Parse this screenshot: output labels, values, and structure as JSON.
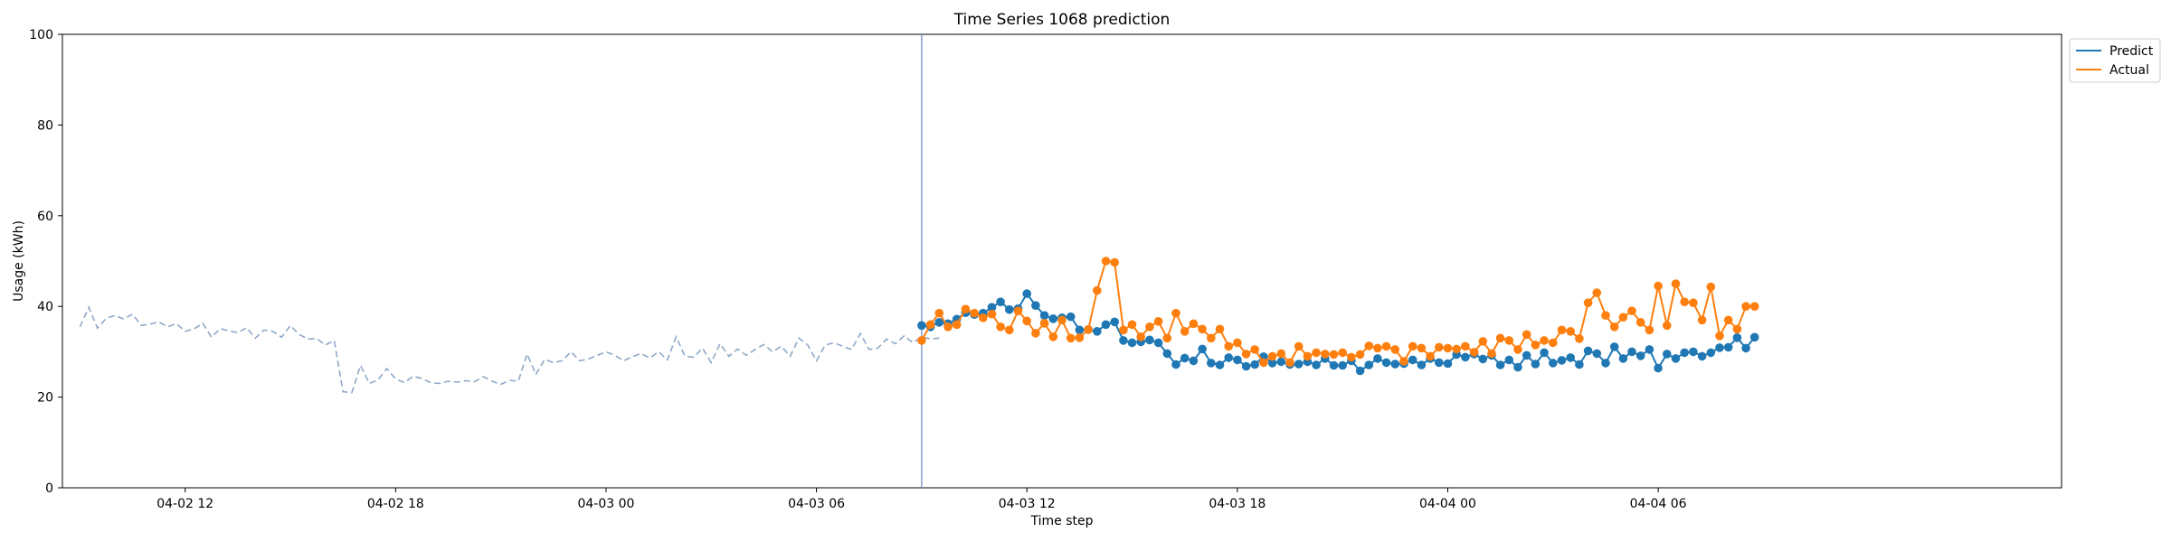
{
  "chart_data": {
    "type": "line",
    "title": "Time Series 1068 prediction",
    "xlabel": "Time step",
    "ylabel": "Usage (kWh)",
    "ylim": [
      0,
      100
    ],
    "yticks": [
      0,
      20,
      40,
      60,
      80,
      100
    ],
    "x_axis": {
      "start": "2024-04-02T08:30",
      "end": "2024-04-04T17:30",
      "ticks": [
        {
          "t": "2024-04-02T12:00",
          "label": "04-02 12"
        },
        {
          "t": "2024-04-02T18:00",
          "label": "04-02 18"
        },
        {
          "t": "2024-04-03T00:00",
          "label": "04-03 00"
        },
        {
          "t": "2024-04-03T06:00",
          "label": "04-03 06"
        },
        {
          "t": "2024-04-03T12:00",
          "label": "04-03 12"
        },
        {
          "t": "2024-04-03T18:00",
          "label": "04-03 18"
        },
        {
          "t": "2024-04-04T00:00",
          "label": "04-04 00"
        },
        {
          "t": "2024-04-04T06:00",
          "label": "04-04 06"
        }
      ]
    },
    "step_minutes": 15,
    "split_time": "2024-04-03T09:00",
    "legend": {
      "placement": "top-right",
      "entries": [
        "Predict",
        "Actual"
      ]
    },
    "colors": {
      "predict": "#1f77b4",
      "actual": "#ff7f0e",
      "history": "#8fa8c8",
      "split_line": "#6f8fc8"
    },
    "series": [
      {
        "name": "History",
        "style": "dashed",
        "start": "2024-04-02T09:00",
        "values": [
          35.5,
          39.8,
          35.2,
          37.4,
          38.0,
          37.2,
          38.3,
          35.8,
          36.1,
          36.6,
          35.5,
          36.2,
          34.5,
          35.0,
          36.3,
          33.2,
          35.1,
          34.6,
          34.2,
          35.3,
          33.0,
          34.8,
          34.5,
          33.2,
          35.8,
          33.8,
          32.8,
          32.9,
          31.5,
          32.5,
          21.2,
          21.0,
          27.0,
          23.0,
          23.8,
          26.3,
          24.0,
          23.2,
          24.6,
          24.1,
          23.2,
          23.0,
          23.5,
          23.3,
          23.6,
          23.4,
          24.5,
          23.5,
          22.8,
          23.7,
          23.5,
          29.5,
          25.0,
          28.3,
          27.6,
          28.0,
          30.0,
          28.0,
          28.4,
          29.2,
          30.0,
          29.2,
          28.0,
          28.9,
          29.6,
          28.6,
          30.0,
          28.2,
          33.3,
          29.0,
          28.8,
          30.8,
          27.6,
          31.8,
          29.0,
          30.6,
          29.2,
          30.5,
          31.6,
          30.0,
          31.2,
          29.0,
          33.0,
          31.5,
          28.0,
          31.5,
          32.0,
          31.2,
          30.5,
          34.0,
          30.5,
          30.8,
          32.8,
          31.8,
          33.5,
          32.0,
          33.3,
          32.8,
          33.0
        ]
      },
      {
        "name": "Predict",
        "start": "2024-04-03T09:00",
        "values": [
          35.8,
          35.5,
          36.5,
          36.2,
          37.2,
          38.6,
          38.2,
          38.5,
          39.8,
          41.0,
          39.3,
          39.5,
          42.8,
          40.2,
          38.0,
          37.3,
          37.5,
          37.7,
          34.8,
          34.9,
          34.5,
          36.0,
          36.6,
          32.5,
          32.0,
          32.2,
          32.6,
          32.0,
          29.6,
          27.2,
          28.6,
          28.0,
          30.6,
          27.5,
          27.1,
          28.7,
          28.2,
          26.8,
          27.2,
          28.9,
          27.5,
          27.8,
          27.2,
          27.3,
          27.8,
          27.1,
          28.5,
          27.0,
          27.0,
          28.0,
          25.8,
          27.1,
          28.5,
          27.6,
          27.3,
          27.4,
          28.2,
          27.1,
          28.5,
          27.6,
          27.4,
          29.4,
          28.8,
          29.5,
          28.4,
          29.2,
          27.1,
          28.2,
          26.6,
          29.2,
          27.3,
          29.8,
          27.5,
          28.1,
          28.7,
          27.2,
          30.2,
          29.6,
          27.5,
          31.1,
          28.5,
          30.0,
          29.1,
          30.5,
          26.4,
          29.5,
          28.5,
          29.8,
          30.0,
          29.0,
          29.8,
          30.9,
          31.0,
          33.1,
          30.8,
          33.2
        ]
      },
      {
        "name": "Actual",
        "start": "2024-04-03T09:00",
        "values": [
          32.5,
          36.0,
          38.5,
          35.5,
          36.0,
          39.4,
          38.5,
          37.5,
          38.3,
          35.5,
          34.8,
          39.0,
          36.8,
          34.1,
          36.3,
          33.3,
          37.0,
          33.0,
          33.1,
          34.9,
          43.5,
          50.0,
          49.7,
          34.8,
          36.0,
          33.3,
          35.5,
          36.7,
          33.0,
          38.5,
          34.5,
          36.2,
          35.0,
          33.0,
          35.0,
          31.2,
          32.0,
          29.5,
          30.5,
          27.6,
          29.0,
          29.6,
          27.6,
          31.2,
          29.0,
          29.8,
          29.5,
          29.4,
          29.8,
          28.8,
          29.4,
          31.3,
          30.8,
          31.2,
          30.5,
          27.9,
          31.2,
          30.8,
          29.0,
          31.0,
          30.8,
          30.6,
          31.2,
          29.9,
          32.3,
          29.6,
          33.0,
          32.5,
          30.5,
          33.8,
          31.5,
          32.5,
          32.0,
          34.8,
          34.5,
          32.9,
          40.8,
          43.0,
          38.0,
          35.5,
          37.6,
          39.0,
          36.5,
          34.8,
          44.5,
          35.8,
          45.0,
          41.0,
          40.8,
          37.0,
          44.3,
          33.5,
          37.0,
          35.0,
          40.0,
          40.0
        ]
      }
    ]
  }
}
